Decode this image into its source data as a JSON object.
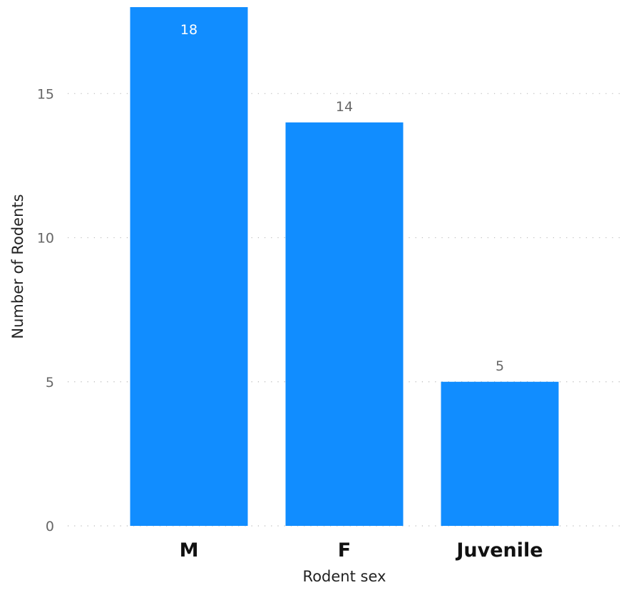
{
  "chart_data": {
    "type": "bar",
    "categories": [
      "M",
      "F",
      "Juvenile"
    ],
    "values": [
      18,
      14,
      5
    ],
    "xlabel": "Rodent sex",
    "ylabel": "Number of Rodents",
    "ylim": [
      0,
      18
    ],
    "yticks": [
      0,
      5,
      10,
      15
    ],
    "grid": true,
    "grid_style": "dotted horizontal",
    "data_labels": true,
    "colors": {
      "bar": "#118DFF",
      "label_inside": "#ffffff",
      "label_outside": "#666666"
    }
  }
}
